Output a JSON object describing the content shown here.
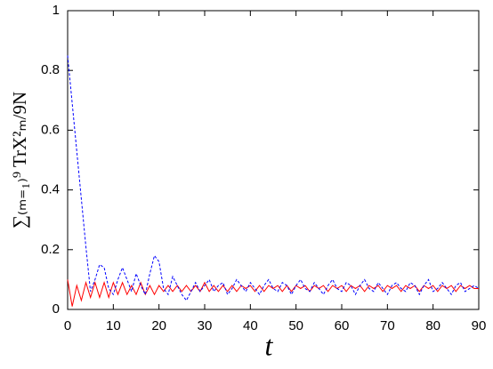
{
  "chart_data": {
    "type": "line",
    "x_label": "t",
    "y_label": "∑₍ₘ₌₁₎⁹ TrX²ₘ/9N",
    "x": [
      0,
      1,
      2,
      3,
      4,
      5,
      6,
      7,
      8,
      9,
      10,
      11,
      12,
      13,
      14,
      15,
      16,
      17,
      18,
      19,
      20,
      21,
      22,
      23,
      24,
      25,
      26,
      27,
      28,
      29,
      30,
      31,
      32,
      33,
      34,
      35,
      36,
      37,
      38,
      39,
      40,
      41,
      42,
      43,
      44,
      45,
      46,
      47,
      48,
      49,
      50,
      51,
      52,
      53,
      54,
      55,
      56,
      57,
      58,
      59,
      60,
      61,
      62,
      63,
      64,
      65,
      66,
      67,
      68,
      69,
      70,
      71,
      72,
      73,
      74,
      75,
      76,
      77,
      78,
      79,
      80,
      81,
      82,
      83,
      84,
      85,
      86,
      87,
      88,
      89,
      90
    ],
    "series": [
      {
        "color": "#ff0000",
        "dashed": false,
        "values": [
          0.1,
          0.01,
          0.08,
          0.03,
          0.09,
          0.04,
          0.09,
          0.04,
          0.09,
          0.04,
          0.09,
          0.05,
          0.09,
          0.05,
          0.08,
          0.05,
          0.09,
          0.05,
          0.08,
          0.05,
          0.08,
          0.06,
          0.08,
          0.06,
          0.08,
          0.06,
          0.08,
          0.06,
          0.08,
          0.06,
          0.09,
          0.06,
          0.08,
          0.06,
          0.08,
          0.06,
          0.08,
          0.06,
          0.08,
          0.07,
          0.08,
          0.06,
          0.08,
          0.06,
          0.08,
          0.07,
          0.08,
          0.06,
          0.08,
          0.06,
          0.08,
          0.07,
          0.08,
          0.06,
          0.08,
          0.07,
          0.08,
          0.06,
          0.08,
          0.07,
          0.08,
          0.06,
          0.08,
          0.07,
          0.08,
          0.06,
          0.08,
          0.07,
          0.08,
          0.06,
          0.08,
          0.07,
          0.08,
          0.06,
          0.08,
          0.07,
          0.08,
          0.06,
          0.08,
          0.07,
          0.08,
          0.06,
          0.08,
          0.07,
          0.08,
          0.06,
          0.08,
          0.07,
          0.08,
          0.07,
          0.07
        ]
      },
      {
        "color": "#0000ff",
        "dashed": true,
        "values": [
          0.85,
          0.69,
          0.53,
          0.37,
          0.21,
          0.06,
          0.1,
          0.15,
          0.14,
          0.07,
          0.05,
          0.1,
          0.14,
          0.1,
          0.06,
          0.12,
          0.08,
          0.05,
          0.12,
          0.18,
          0.16,
          0.07,
          0.05,
          0.11,
          0.08,
          0.05,
          0.03,
          0.06,
          0.09,
          0.06,
          0.08,
          0.1,
          0.06,
          0.08,
          0.09,
          0.05,
          0.07,
          0.1,
          0.08,
          0.06,
          0.09,
          0.07,
          0.05,
          0.08,
          0.1,
          0.07,
          0.06,
          0.09,
          0.08,
          0.05,
          0.08,
          0.1,
          0.07,
          0.06,
          0.09,
          0.07,
          0.05,
          0.08,
          0.1,
          0.07,
          0.06,
          0.09,
          0.08,
          0.05,
          0.08,
          0.1,
          0.07,
          0.06,
          0.09,
          0.07,
          0.05,
          0.08,
          0.09,
          0.07,
          0.06,
          0.09,
          0.08,
          0.05,
          0.08,
          0.1,
          0.06,
          0.07,
          0.09,
          0.07,
          0.05,
          0.08,
          0.09,
          0.06,
          0.07,
          0.08,
          0.07
        ]
      }
    ],
    "xlim": [
      0,
      90
    ],
    "ylim": [
      0,
      1
    ],
    "xticks": [
      0,
      10,
      20,
      30,
      40,
      50,
      60,
      70,
      80,
      90
    ],
    "yticks": [
      0,
      {
        "value": 0.2,
        "label": "0.2"
      },
      {
        "value": 0.4,
        "label": "0.4"
      },
      {
        "value": 0.6,
        "label": "0.6"
      },
      {
        "value": 0.8,
        "label": "0.8"
      },
      1
    ]
  }
}
